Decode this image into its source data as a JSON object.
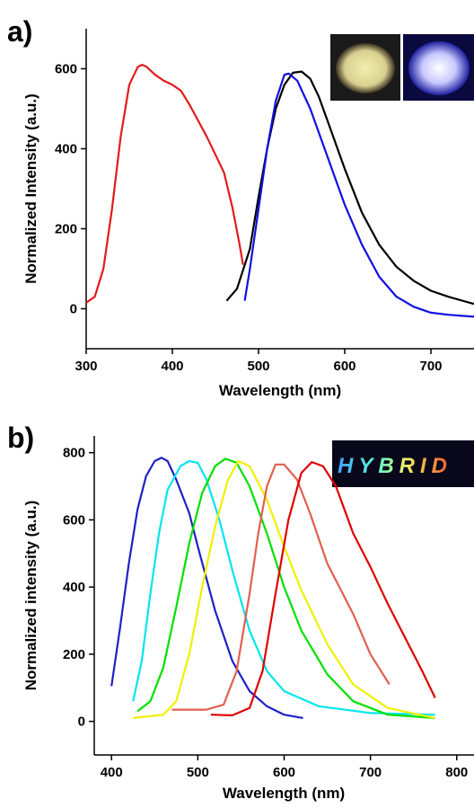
{
  "chart_data": [
    {
      "type": "line",
      "panel_label": "a)",
      "x_label": "Wavelength (nm)",
      "y_label": "Normalized Intensity (a.u.)",
      "xlim": [
        300,
        750
      ],
      "ylim": [
        -100,
        700
      ],
      "xticks": [
        300,
        400,
        500,
        600,
        700
      ],
      "yticks": [
        0,
        200,
        400,
        600
      ],
      "series": [
        {
          "color": "#e41a1c",
          "x": [
            300,
            310,
            320,
            330,
            340,
            350,
            360,
            365,
            370,
            380,
            390,
            400,
            410,
            420,
            440,
            460,
            470,
            478,
            482
          ],
          "values": [
            15,
            30,
            100,
            250,
            430,
            560,
            605,
            610,
            605,
            585,
            570,
            560,
            545,
            510,
            430,
            340,
            250,
            160,
            110
          ]
        },
        {
          "color": "#000000",
          "x": [
            463,
            475,
            490,
            500,
            510,
            520,
            530,
            540,
            550,
            560,
            570,
            580,
            600,
            620,
            640,
            660,
            680,
            700,
            720,
            740,
            750
          ],
          "values": [
            20,
            50,
            150,
            280,
            400,
            500,
            560,
            590,
            593,
            575,
            530,
            470,
            350,
            240,
            160,
            105,
            70,
            45,
            30,
            18,
            12
          ]
        },
        {
          "color": "#1010e0",
          "x": [
            484,
            490,
            500,
            510,
            520,
            530,
            535,
            545,
            560,
            580,
            600,
            620,
            640,
            660,
            680,
            700,
            720,
            750
          ],
          "values": [
            20,
            100,
            250,
            400,
            520,
            585,
            588,
            570,
            500,
            380,
            260,
            160,
            80,
            30,
            5,
            -10,
            -15,
            -20
          ]
        }
      ]
    },
    {
      "type": "line",
      "panel_label": "b)",
      "x_label": "Wavelength (nm)",
      "y_label": "Normalized intensity (a.u.)",
      "inset_text": "HYBRID",
      "xlim": [
        380,
        820
      ],
      "ylim": [
        -100,
        850
      ],
      "xticks": [
        400,
        500,
        600,
        700,
        800
      ],
      "yticks": [
        0,
        200,
        400,
        600,
        800
      ],
      "series": [
        {
          "color": "#2020c8",
          "x": [
            400,
            410,
            420,
            430,
            440,
            450,
            458,
            465,
            475,
            490,
            500,
            520,
            540,
            560,
            580,
            600,
            622
          ],
          "values": [
            105,
            280,
            470,
            630,
            730,
            775,
            785,
            775,
            720,
            620,
            520,
            330,
            180,
            90,
            45,
            20,
            10
          ]
        },
        {
          "color": "#00e5ee",
          "x": [
            425,
            435,
            445,
            455,
            465,
            480,
            490,
            500,
            510,
            525,
            540,
            560,
            580,
            600,
            640,
            700,
            775
          ],
          "values": [
            60,
            180,
            380,
            560,
            690,
            760,
            775,
            770,
            720,
            600,
            450,
            270,
            150,
            90,
            45,
            25,
            20
          ]
        },
        {
          "color": "#00e000",
          "x": [
            430,
            445,
            460,
            475,
            490,
            505,
            520,
            532,
            545,
            560,
            580,
            600,
            620,
            650,
            680,
            720,
            775
          ],
          "values": [
            30,
            60,
            160,
            340,
            530,
            680,
            760,
            782,
            770,
            700,
            560,
            400,
            270,
            140,
            60,
            20,
            10
          ]
        },
        {
          "color": "#f0f000",
          "x": [
            425,
            460,
            475,
            490,
            505,
            520,
            535,
            547,
            560,
            580,
            600,
            620,
            650,
            680,
            720,
            775
          ],
          "values": [
            10,
            20,
            60,
            200,
            400,
            580,
            720,
            775,
            760,
            660,
            520,
            390,
            230,
            110,
            40,
            10
          ]
        },
        {
          "color": "#e06050",
          "x": [
            470,
            510,
            530,
            545,
            560,
            570,
            580,
            590,
            600,
            615,
            630,
            650,
            680,
            700,
            722
          ],
          "values": [
            35,
            35,
            50,
            150,
            380,
            560,
            700,
            765,
            765,
            720,
            620,
            470,
            320,
            200,
            110
          ]
        },
        {
          "color": "#e00000",
          "x": [
            515,
            540,
            560,
            575,
            590,
            605,
            620,
            632,
            645,
            660,
            680,
            700,
            720,
            740,
            760,
            775
          ],
          "values": [
            20,
            18,
            40,
            150,
            380,
            600,
            740,
            772,
            760,
            700,
            560,
            460,
            350,
            250,
            150,
            70
          ]
        }
      ]
    }
  ]
}
